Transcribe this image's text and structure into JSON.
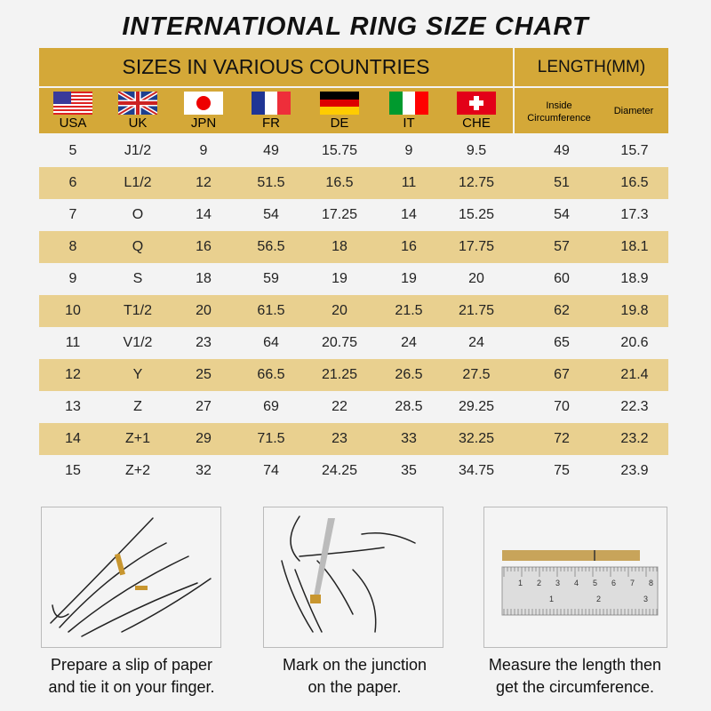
{
  "title": "INTERNATIONAL RING SIZE CHART",
  "header": {
    "countries_label": "SIZES IN VARIOUS COUNTRIES",
    "length_label": "LENGTH(MM)",
    "countries": [
      {
        "code": "USA",
        "icon": "usa-flag-icon"
      },
      {
        "code": "UK",
        "icon": "uk-flag-icon"
      },
      {
        "code": "JPN",
        "icon": "japan-flag-icon"
      },
      {
        "code": "FR",
        "icon": "france-flag-icon"
      },
      {
        "code": "DE",
        "icon": "germany-flag-icon"
      },
      {
        "code": "IT",
        "icon": "italy-flag-icon"
      },
      {
        "code": "CHE",
        "icon": "switzerland-flag-icon"
      }
    ],
    "inside_circumference": [
      "Inside",
      "Circumference"
    ],
    "diameter": "Diameter"
  },
  "colors": {
    "header": "#d4a838",
    "stripe": "#e9d08f",
    "background": "#f3f3f3"
  },
  "rows": [
    [
      "5",
      "J1/2",
      "9",
      "49",
      "15.75",
      "9",
      "9.5",
      "49",
      "15.7"
    ],
    [
      "6",
      "L1/2",
      "12",
      "51.5",
      "16.5",
      "11",
      "12.75",
      "51",
      "16.5"
    ],
    [
      "7",
      "O",
      "14",
      "54",
      "17.25",
      "14",
      "15.25",
      "54",
      "17.3"
    ],
    [
      "8",
      "Q",
      "16",
      "56.5",
      "18",
      "16",
      "17.75",
      "57",
      "18.1"
    ],
    [
      "9",
      "S",
      "18",
      "59",
      "19",
      "19",
      "20",
      "60",
      "18.9"
    ],
    [
      "10",
      "T1/2",
      "20",
      "61.5",
      "20",
      "21.5",
      "21.75",
      "62",
      "19.8"
    ],
    [
      "11",
      "V1/2",
      "23",
      "64",
      "20.75",
      "24",
      "24",
      "65",
      "20.6"
    ],
    [
      "12",
      "Y",
      "25",
      "66.5",
      "21.25",
      "26.5",
      "27.5",
      "67",
      "21.4"
    ],
    [
      "13",
      "Z",
      "27",
      "69",
      "22",
      "28.5",
      "29.25",
      "70",
      "22.3"
    ],
    [
      "14",
      "Z+1",
      "29",
      "71.5",
      "23",
      "33",
      "32.25",
      "72",
      "23.2"
    ],
    [
      "15",
      "Z+2",
      "32",
      "74",
      "24.25",
      "35",
      "34.75",
      "75",
      "23.9"
    ]
  ],
  "steps": [
    {
      "lines": [
        "Prepare a slip of paper",
        "and tie it on your finger."
      ]
    },
    {
      "lines": [
        "Mark on the junction",
        "on the paper."
      ]
    },
    {
      "lines": [
        "Measure the length then",
        "get the circumference."
      ]
    }
  ],
  "ruler": {
    "cm": [
      "1",
      "2",
      "3",
      "4",
      "5",
      "6",
      "7",
      "8"
    ],
    "inch": [
      "1",
      "2",
      "3"
    ]
  }
}
